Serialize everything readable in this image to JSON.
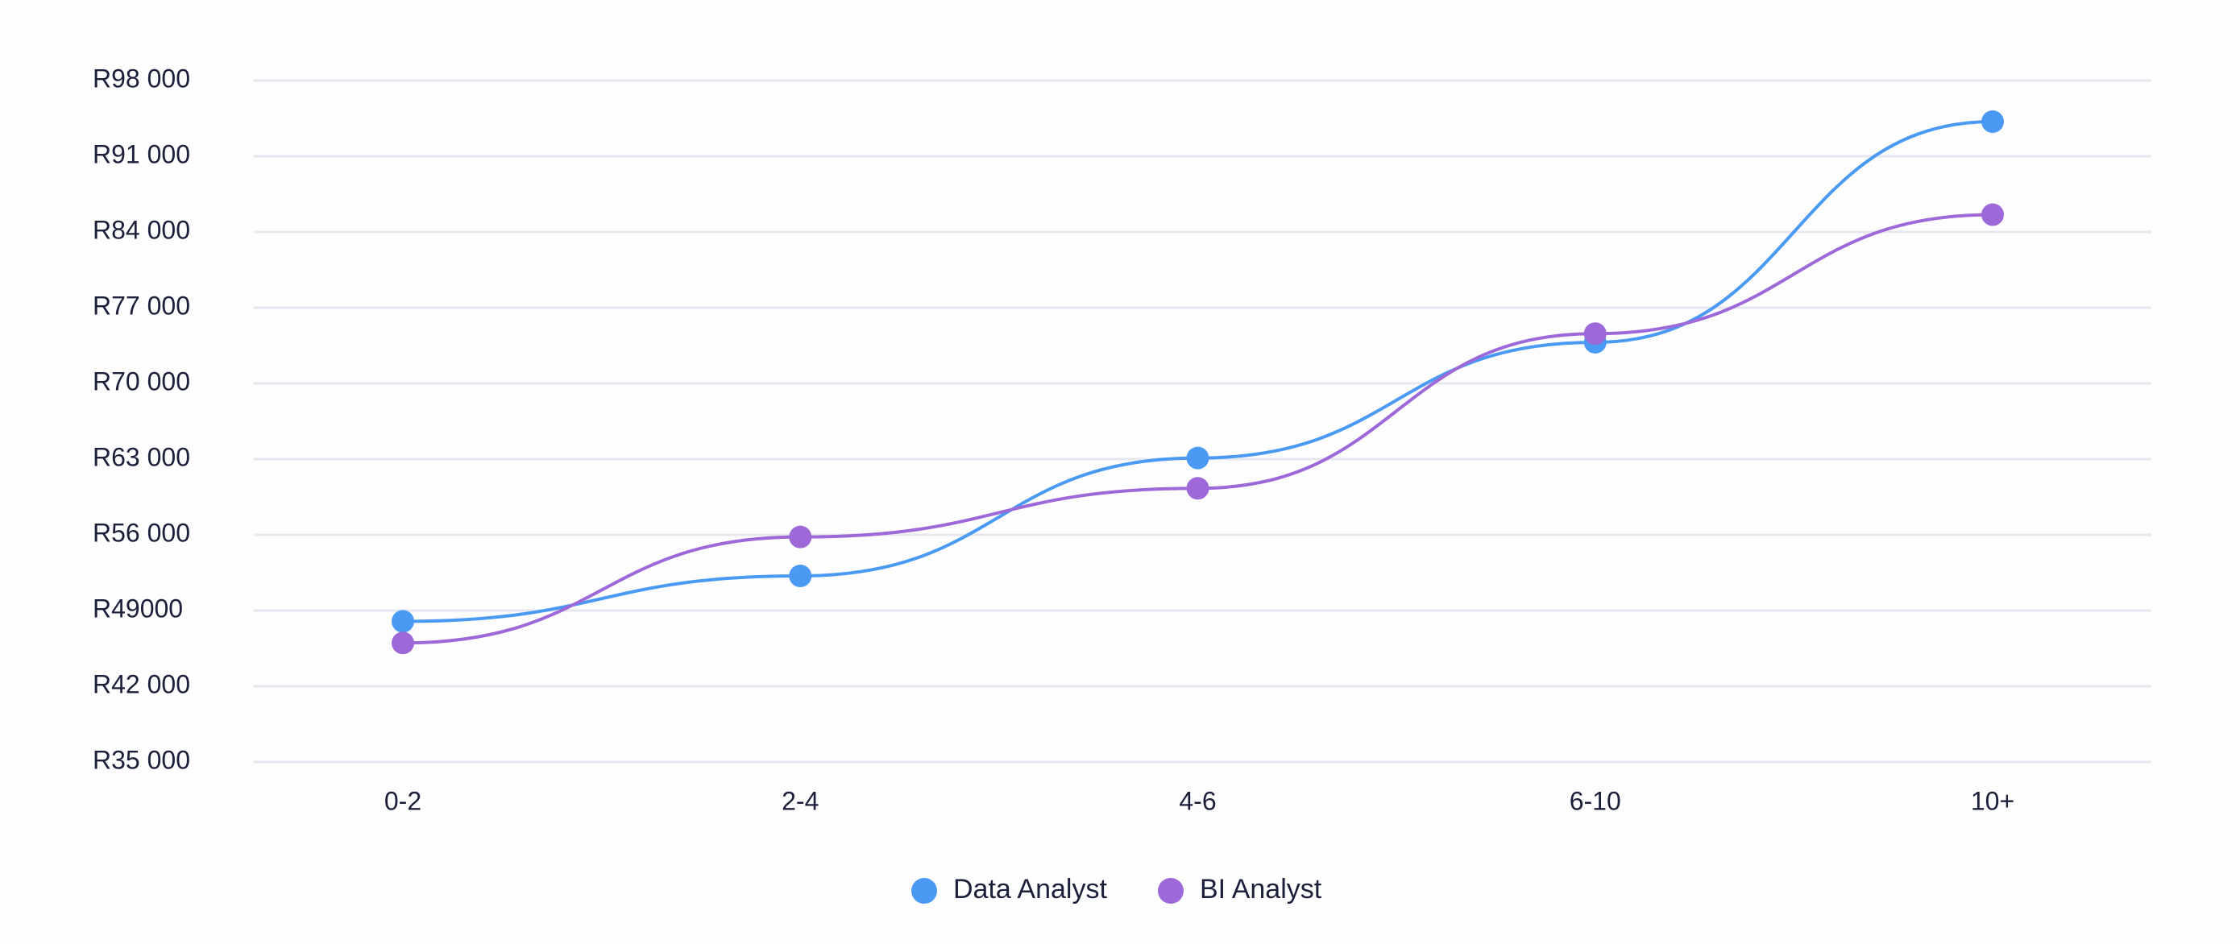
{
  "chart_data": {
    "type": "line",
    "title": "",
    "xlabel": "",
    "ylabel": "",
    "categories": [
      "0-2",
      "2-4",
      "4-6",
      "6-10",
      "10+"
    ],
    "y_ticks": [
      {
        "value": 98000,
        "label": "R98 000"
      },
      {
        "value": 91000,
        "label": "R91 000"
      },
      {
        "value": 84000,
        "label": "R84 000"
      },
      {
        "value": 77000,
        "label": "R77 000"
      },
      {
        "value": 70000,
        "label": "R70 000"
      },
      {
        "value": 63000,
        "label": "R63 000"
      },
      {
        "value": 56000,
        "label": "R56 000"
      },
      {
        "value": 49000,
        "label": "R49000"
      },
      {
        "value": 42000,
        "label": "R42 000"
      },
      {
        "value": 35000,
        "label": "R35 000"
      }
    ],
    "ylim": [
      35000,
      98000
    ],
    "grid": true,
    "legend_position": "bottom-center",
    "series": [
      {
        "name": "Data Analyst",
        "color": "#4a9af4",
        "values": [
          48000,
          52200,
          63100,
          73800,
          94200
        ]
      },
      {
        "name": "BI Analyst",
        "color": "#9d68d8",
        "values": [
          46000,
          55800,
          60300,
          74600,
          85600
        ]
      }
    ]
  }
}
